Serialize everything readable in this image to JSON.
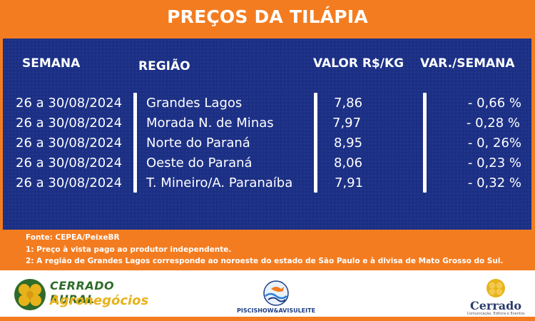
{
  "header": {
    "title": "PREÇOS DA TILÁPIA"
  },
  "table": {
    "headers": {
      "week": "SEMANA",
      "region": "REGIÃO",
      "value": "VALOR R$/KG",
      "variation": "VAR./SEMANA"
    },
    "rows": [
      {
        "week": "26 a 30/08/2024",
        "region": "Grandes Lagos",
        "value": "7,86",
        "variation": "- 0,66 %"
      },
      {
        "week": "26 a 30/08/2024",
        "region": "Morada N. de Minas",
        "value": "7,97",
        "variation": "- 0,28 %"
      },
      {
        "week": "26 a 30/08/2024",
        "region": "Norte do Paraná",
        "value": "8,95",
        "variation": "- 0, 26%"
      },
      {
        "week": "26 a 30/08/2024",
        "region": "Oeste do Paraná",
        "value": "8,06",
        "variation": "- 0,23 %"
      },
      {
        "week": "26 a 30/08/2024",
        "region": "T. Mineiro/A. Paranaíba",
        "value": "7,91",
        "variation": "- 0,32 %"
      }
    ]
  },
  "notes": {
    "source": "Fonte: CEPEA/PeixeBR",
    "note1": "1: Preço à vista pago ao produtor independente.",
    "note2": "2: A região de Grandes Lagos corresponde ao noroeste do estado de São Paulo e à divisa de Mato Grosso do Sul."
  },
  "logos": {
    "cerrado_rural_line1": "CERRADO RURAL",
    "cerrado_rural_line2": "Agronegócios",
    "pisci": "PISCISHOW&AVISULEITE",
    "cerrado": "Cerrado",
    "cerrado_sub": "Comunicação, Editora e Eventos"
  },
  "colors": {
    "orange": "#f47c20",
    "navy": "#1b2f85",
    "white": "#ffffff"
  }
}
